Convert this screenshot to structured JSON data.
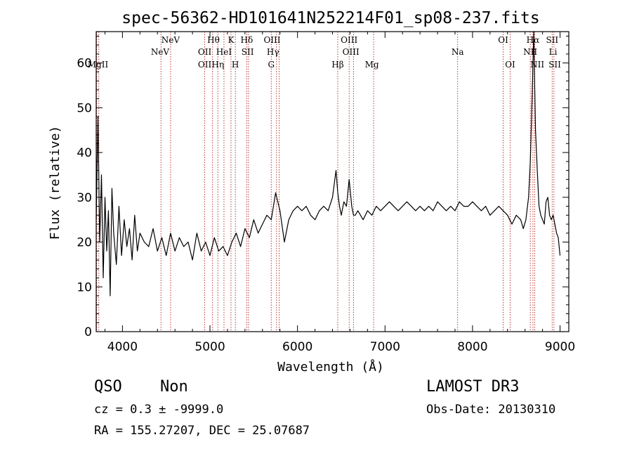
{
  "chart_data": {
    "type": "line",
    "title": "spec-56362-HD101641N252214F01_sp08-237.fits",
    "xlabel": "Wavelength (Å)",
    "ylabel": "Flux (relative)",
    "xlim": [
      3700,
      9100
    ],
    "ylim": [
      0,
      67
    ],
    "x_ticks": [
      4000,
      5000,
      6000,
      7000,
      8000,
      9000
    ],
    "x_tick_labels": [
      "4000",
      "5000",
      "6000",
      "7000",
      "8000",
      "9000"
    ],
    "y_ticks": [
      0,
      10,
      20,
      30,
      40,
      50,
      60
    ],
    "y_tick_labels": [
      "0",
      "10",
      "20",
      "30",
      "40",
      "50",
      "60"
    ],
    "series": [
      {
        "name": "spectrum",
        "x": [
          3700,
          3720,
          3740,
          3760,
          3780,
          3800,
          3820,
          3840,
          3860,
          3880,
          3900,
          3930,
          3960,
          3990,
          4020,
          4050,
          4080,
          4110,
          4140,
          4170,
          4200,
          4250,
          4300,
          4350,
          4400,
          4450,
          4500,
          4550,
          4600,
          4650,
          4700,
          4750,
          4800,
          4850,
          4900,
          4950,
          5000,
          5050,
          5100,
          5150,
          5200,
          5250,
          5300,
          5350,
          5400,
          5450,
          5500,
          5550,
          5600,
          5650,
          5700,
          5750,
          5800,
          5850,
          5900,
          5950,
          6000,
          6050,
          6100,
          6150,
          6200,
          6250,
          6300,
          6350,
          6400,
          6420,
          6440,
          6460,
          6480,
          6500,
          6530,
          6560,
          6590,
          6620,
          6640,
          6660,
          6690,
          6720,
          6750,
          6800,
          6850,
          6900,
          6950,
          7000,
          7050,
          7100,
          7150,
          7200,
          7250,
          7300,
          7350,
          7400,
          7450,
          7500,
          7550,
          7600,
          7650,
          7700,
          7750,
          7800,
          7850,
          7900,
          7950,
          8000,
          8050,
          8100,
          8150,
          8200,
          8250,
          8300,
          8350,
          8400,
          8450,
          8500,
          8550,
          8580,
          8610,
          8640,
          8660,
          8680,
          8700,
          8710,
          8720,
          8740,
          8760,
          8780,
          8800,
          8820,
          8840,
          8860,
          8880,
          8900,
          8920,
          8940,
          8960,
          8980,
          9000
        ],
        "y": [
          25,
          48,
          20,
          35,
          12,
          30,
          18,
          27,
          8,
          32,
          22,
          15,
          28,
          17,
          25,
          19,
          23,
          16,
          26,
          18,
          22,
          20,
          19,
          23,
          18,
          21,
          17,
          22,
          18,
          21,
          19,
          20,
          16,
          22,
          18,
          20,
          17,
          21,
          18,
          19,
          17,
          20,
          22,
          19,
          23,
          21,
          25,
          22,
          24,
          26,
          25,
          31,
          27,
          20,
          25,
          27,
          28,
          27,
          28,
          26,
          25,
          27,
          28,
          27,
          30,
          33,
          36,
          31,
          28,
          26,
          29,
          28,
          34,
          28,
          26,
          26,
          27,
          26,
          25,
          27,
          26,
          28,
          27,
          28,
          29,
          28,
          27,
          28,
          29,
          28,
          27,
          28,
          27,
          28,
          27,
          29,
          28,
          27,
          28,
          27,
          29,
          28,
          28,
          29,
          28,
          27,
          28,
          26,
          27,
          28,
          27,
          26,
          24,
          26,
          25,
          23,
          25,
          30,
          38,
          52,
          67,
          55,
          45,
          36,
          28,
          26,
          25,
          24,
          29,
          30,
          26,
          25,
          26,
          24,
          22,
          21,
          17
        ]
      }
    ],
    "emission_lines": [
      {
        "label": "MgII",
        "x": 3720,
        "row": 3
      },
      {
        "label": "NeV",
        "x": 4430,
        "row": 2
      },
      {
        "label": "NeV",
        "x": 4550,
        "row": 1
      },
      {
        "label": "OII",
        "x": 4940,
        "row": 2
      },
      {
        "label": "OII",
        "x": 4940,
        "row": 3
      },
      {
        "label": "Hθ",
        "x": 5040,
        "row": 1
      },
      {
        "label": "Hη",
        "x": 5090,
        "row": 3
      },
      {
        "label": "HeI",
        "x": 5160,
        "row": 2
      },
      {
        "label": "K",
        "x": 5240,
        "row": 1
      },
      {
        "label": "H",
        "x": 5290,
        "row": 3
      },
      {
        "label": "Hδ",
        "x": 5420,
        "row": 1
      },
      {
        "label": "SII",
        "x": 5430,
        "row": 2
      },
      {
        "label": "OIII",
        "x": 5710,
        "row": 1
      },
      {
        "label": "Hγ",
        "x": 5720,
        "row": 2
      },
      {
        "label": "G",
        "x": 5700,
        "row": 3
      },
      {
        "label": "Hβ",
        "x": 6460,
        "row": 3
      },
      {
        "label": "OIII",
        "x": 6590,
        "row": 1
      },
      {
        "label": "OIII",
        "x": 6610,
        "row": 2
      },
      {
        "label": "Mg",
        "x": 6850,
        "row": 3
      },
      {
        "label": "Na",
        "x": 7830,
        "row": 2
      },
      {
        "label": "OI",
        "x": 8350,
        "row": 1
      },
      {
        "label": "OI",
        "x": 8430,
        "row": 3
      },
      {
        "label": "Hα",
        "x": 8690,
        "row": 1
      },
      {
        "label": "NII",
        "x": 8660,
        "row": 2
      },
      {
        "label": "NII",
        "x": 8740,
        "row": 3
      },
      {
        "label": "SII",
        "x": 8910,
        "row": 1
      },
      {
        "label": "Li",
        "x": 8920,
        "row": 2
      },
      {
        "label": "SII",
        "x": 8940,
        "row": 3
      }
    ],
    "line_marker_x": [
      3705,
      3730,
      4440,
      4550,
      4940,
      5030,
      5090,
      5160,
      5240,
      5290,
      5420,
      5440,
      5700,
      5760,
      5790,
      6460,
      6590,
      6640,
      6870,
      7830,
      8350,
      8430,
      8660,
      8690,
      8710,
      8910,
      8930
    ]
  },
  "footer": {
    "object_class": "QSO",
    "subclass": "Non",
    "survey": "LAMOST DR3",
    "cz_line": "cz = 0.3 ± -9999.0",
    "obs_date": "Obs-Date: 20130310",
    "coords": "RA = 155.27207, DEC =  25.07687"
  }
}
